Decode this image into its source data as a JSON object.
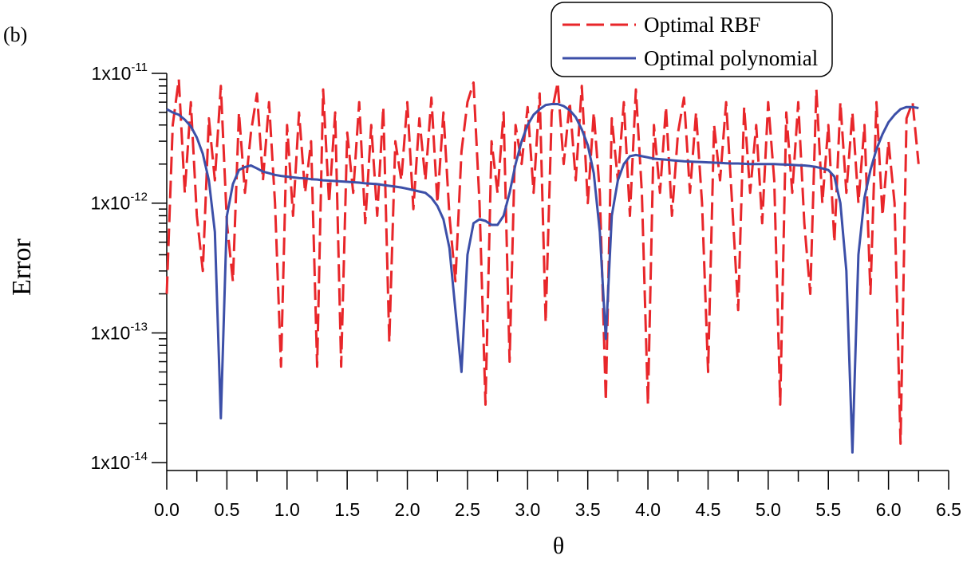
{
  "chart_data": {
    "type": "line",
    "panel_label": "(b)",
    "xlabel": "θ",
    "ylabel": "Error",
    "yscale": "log",
    "legend": "upper right",
    "xlim": [
      0,
      6.5
    ],
    "xticks": [
      {
        "value": 0,
        "label": "0.0"
      },
      {
        "value": 0.5,
        "label": "0.5"
      },
      {
        "value": 1,
        "label": "1.0"
      },
      {
        "value": 1.5,
        "label": "1.5"
      },
      {
        "value": 2,
        "label": "2.0"
      },
      {
        "value": 2.5,
        "label": "2.5"
      },
      {
        "value": 3,
        "label": "3.0"
      },
      {
        "value": 3.5,
        "label": "3.5"
      },
      {
        "value": 4,
        "label": "4.0"
      },
      {
        "value": 4.5,
        "label": "4.5"
      },
      {
        "value": 5,
        "label": "5.0"
      },
      {
        "value": 5.5,
        "label": "5.5"
      },
      {
        "value": 6,
        "label": "6.0"
      },
      {
        "value": 6.5,
        "label": "6.5"
      }
    ],
    "ylim": [
      8.7e-15,
      1e-11
    ],
    "yticks": [
      {
        "value": 1e-14,
        "label": "1x10",
        "exponent": "-14"
      },
      {
        "value": 1e-13,
        "label": "1x10",
        "exponent": "-13"
      },
      {
        "value": 1e-12,
        "label": "1x10",
        "exponent": "-12"
      },
      {
        "value": 1e-11,
        "label": "1x10",
        "exponent": "-11"
      }
    ],
    "x": [
      0,
      0.05,
      0.1,
      0.15,
      0.2,
      0.25,
      0.3,
      0.35,
      0.4,
      0.45,
      0.5,
      0.55,
      0.6,
      0.65,
      0.7,
      0.75,
      0.8,
      0.85,
      0.9,
      0.95,
      1,
      1.05,
      1.1,
      1.15,
      1.2,
      1.25,
      1.3,
      1.35,
      1.4,
      1.45,
      1.5,
      1.55,
      1.6,
      1.65,
      1.7,
      1.75,
      1.8,
      1.85,
      1.9,
      1.95,
      2,
      2.05,
      2.1,
      2.15,
      2.2,
      2.25,
      2.3,
      2.35,
      2.4,
      2.45,
      2.5,
      2.55,
      2.6,
      2.65,
      2.7,
      2.75,
      2.8,
      2.85,
      2.9,
      2.95,
      3,
      3.05,
      3.1,
      3.15,
      3.2,
      3.25,
      3.3,
      3.35,
      3.4,
      3.45,
      3.5,
      3.55,
      3.6,
      3.65,
      3.7,
      3.75,
      3.8,
      3.85,
      3.9,
      3.95,
      4,
      4.05,
      4.1,
      4.15,
      4.2,
      4.25,
      4.3,
      4.35,
      4.4,
      4.45,
      4.5,
      4.55,
      4.6,
      4.65,
      4.7,
      4.75,
      4.8,
      4.85,
      4.9,
      4.95,
      5,
      5.05,
      5.1,
      5.15,
      5.2,
      5.25,
      5.3,
      5.35,
      5.4,
      5.45,
      5.5,
      5.55,
      5.6,
      5.65,
      5.7,
      5.75,
      5.8,
      5.85,
      5.9,
      5.95,
      6,
      6.05,
      6.1,
      6.15,
      6.2,
      6.25
    ],
    "series": [
      {
        "name": "Optimal RBF",
        "color": "#e8262a",
        "dashed": true,
        "values": [
          2e-13,
          4e-12,
          9e-12,
          1.2e-12,
          6e-12,
          8e-13,
          3e-13,
          4.5e-12,
          1.5e-12,
          8e-12,
          7e-13,
          2.5e-13,
          5e-12,
          1.2e-12,
          3.5e-12,
          7e-12,
          1.5e-12,
          6e-12,
          1e-12,
          5.5e-14,
          4e-12,
          8e-13,
          5e-12,
          1.2e-12,
          3e-12,
          5.5e-14,
          7.5e-12,
          1e-12,
          5e-12,
          5.5e-14,
          3.5e-12,
          1.2e-12,
          6e-12,
          7e-13,
          4e-12,
          8e-13,
          5.5e-12,
          8.5e-14,
          3e-12,
          1.5e-12,
          6e-12,
          9e-13,
          4.5e-12,
          1.5e-12,
          6.5e-12,
          1e-12,
          5e-12,
          8e-13,
          2.5e-13,
          2.5e-12,
          6e-12,
          8.5e-12,
          1e-12,
          2.8e-14,
          3e-12,
          1.2e-12,
          5e-12,
          6e-14,
          4e-12,
          2e-12,
          5.5e-12,
          1.2e-12,
          7e-12,
          1.2e-13,
          5e-12,
          8.5e-12,
          2e-12,
          6e-12,
          1.5e-12,
          8e-12,
          1e-12,
          5e-12,
          1.2e-12,
          3e-14,
          4.5e-12,
          1.5e-12,
          6e-12,
          8e-13,
          7.5e-12,
          1.2e-12,
          2.8e-14,
          4e-12,
          1.2e-12,
          5.5e-12,
          8e-13,
          3.5e-12,
          6.5e-12,
          1.2e-12,
          5e-12,
          1e-12,
          5e-14,
          4e-12,
          1.5e-12,
          6e-12,
          1e-12,
          1.5e-13,
          5.5e-12,
          1.2e-12,
          4e-12,
          7e-13,
          6e-12,
          1.5e-12,
          2.8e-14,
          5e-12,
          1.2e-12,
          6e-12,
          7e-13,
          2e-13,
          7.5e-12,
          1e-12,
          4e-12,
          5e-13,
          6e-12,
          1.2e-12,
          5e-12,
          1e-12,
          4e-12,
          2e-13,
          6e-12,
          8e-13,
          3e-12,
          1e-12,
          1.4e-14,
          4.5e-12,
          6e-12,
          2e-12
        ]
      },
      {
        "name": "Optimal polynomial",
        "color": "#3c4fa8",
        "dashed": false,
        "values": [
          5.3e-12,
          5e-12,
          4.8e-12,
          4.4e-12,
          3.9e-12,
          3.2e-12,
          2.4e-12,
          1.5e-12,
          6e-13,
          2.2e-14,
          8e-13,
          1.4e-12,
          1.8e-12,
          1.9e-12,
          1.95e-12,
          1.85e-12,
          1.75e-12,
          1.7e-12,
          1.65e-12,
          1.62e-12,
          1.6e-12,
          1.58e-12,
          1.56e-12,
          1.55e-12,
          1.53e-12,
          1.52e-12,
          1.5e-12,
          1.49e-12,
          1.48e-12,
          1.47e-12,
          1.46e-12,
          1.45e-12,
          1.44e-12,
          1.42e-12,
          1.41e-12,
          1.4e-12,
          1.38e-12,
          1.36e-12,
          1.34e-12,
          1.32e-12,
          1.29e-12,
          1.26e-12,
          1.23e-12,
          1.2e-12,
          1.1e-12,
          9.5e-13,
          7.5e-13,
          4.5e-13,
          1.5e-13,
          5e-14,
          4e-13,
          7e-13,
          7.5e-13,
          7.3e-13,
          6.8e-13,
          6.8e-13,
          8e-13,
          1.2e-12,
          2e-12,
          3e-12,
          4e-12,
          4.8e-12,
          5.3e-12,
          5.7e-12,
          5.8e-12,
          5.8e-12,
          5.6e-12,
          5.2e-12,
          4.6e-12,
          3.7e-12,
          2.8e-12,
          1.7e-12,
          6e-13,
          9e-14,
          8e-13,
          1.5e-12,
          2e-12,
          2.3e-12,
          2.35e-12,
          2.3e-12,
          2.25e-12,
          2.2e-12,
          2.18e-12,
          2.16e-12,
          2.14e-12,
          2.12e-12,
          2.1e-12,
          2.09e-12,
          2.08e-12,
          2.07e-12,
          2.06e-12,
          2.05e-12,
          2.04e-12,
          2.03e-12,
          2.02e-12,
          2.02e-12,
          2.01e-12,
          2e-12,
          2e-12,
          2e-12,
          2e-12,
          2e-12,
          1.99e-12,
          1.98e-12,
          1.97e-12,
          1.96e-12,
          1.95e-12,
          1.93e-12,
          1.9e-12,
          1.85e-12,
          1.8e-12,
          1.6e-12,
          1e-12,
          3e-13,
          1.2e-14,
          4e-13,
          1.1e-12,
          1.8e-12,
          2.6e-12,
          3.4e-12,
          4.2e-12,
          4.8e-12,
          5.3e-12,
          5.5e-12,
          5.5e-12,
          5.4e-12
        ]
      }
    ]
  }
}
